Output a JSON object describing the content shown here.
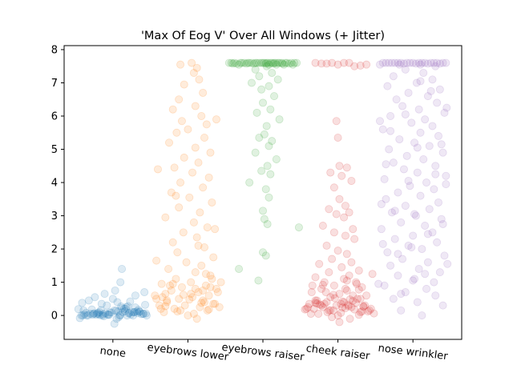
{
  "chart_data": {
    "type": "scatter",
    "title": "'Max Of Eog V' Over All Windows (+ Jitter)",
    "xlabel": "",
    "ylabel": "",
    "categories": [
      "none",
      "eyebrows lower",
      "eyebrows raiser",
      "cheek raiser",
      "nose wrinkler"
    ],
    "ylim": [
      -0.72,
      8.12
    ],
    "yticks": [
      0,
      1,
      2,
      3,
      4,
      5,
      6,
      7,
      8
    ],
    "x_tick_rotation_deg": -7,
    "grid": false,
    "marker_alpha": 0.15,
    "colors": [
      "#1f77b4",
      "#ff7f0e",
      "#2ca02c",
      "#d62728",
      "#9467bd"
    ],
    "series": [
      {
        "values": [
          0.0,
          0.05,
          0.1,
          0.02,
          -0.05,
          0.08,
          0.12,
          0.0,
          0.03,
          0.06,
          -0.02,
          0.15,
          0.2,
          0.1,
          0.05,
          0.0,
          0.08,
          0.3,
          0.4,
          0.25,
          0.12,
          0.06,
          -0.08,
          0.18,
          0.35,
          0.5,
          0.22,
          0.1,
          0.04,
          0.0,
          0.02,
          0.07,
          0.14,
          0.28,
          0.6,
          0.7,
          0.45,
          0.16,
          0.09,
          0.01,
          0.03,
          0.11,
          0.19,
          0.05,
          0.0,
          -0.1,
          0.13,
          0.24,
          0.32,
          0.08,
          0.04,
          0.02,
          0.0,
          0.06,
          0.17,
          0.38,
          0.55,
          0.65,
          0.75,
          0.2,
          0.1,
          0.05,
          0.0,
          0.01,
          0.09,
          0.27,
          0.42,
          1.0,
          1.4,
          -0.25,
          0.02,
          0.04,
          0.12,
          0.0,
          0.07,
          0.15,
          0.05,
          0.03,
          0.1,
          0.0
        ],
        "jitter": [
          -0.42,
          -0.3,
          -0.18,
          -0.05,
          0.08,
          0.22,
          0.35,
          0.45,
          -0.38,
          -0.25,
          -0.12,
          0.02,
          0.15,
          0.28,
          0.4,
          -0.35,
          -0.2,
          -0.08,
          0.06,
          0.18,
          0.32,
          0.44,
          -0.44,
          -0.28,
          -0.15,
          0.0,
          0.12,
          0.26,
          0.38,
          -0.4,
          -0.22,
          -0.1,
          0.04,
          0.2,
          0.3,
          0.42,
          -0.32,
          -0.16,
          -0.02,
          0.1,
          0.24,
          0.36,
          -0.46,
          -0.26,
          -0.14,
          0.05,
          0.16,
          0.3,
          0.43,
          -0.36,
          -0.19,
          -0.06,
          0.09,
          0.21,
          0.34,
          -0.41,
          -0.24,
          -0.11,
          0.03,
          0.17,
          0.29,
          0.41,
          -0.33,
          -0.17,
          -0.04,
          0.11,
          0.23,
          0.1,
          0.12,
          0.02,
          -0.27,
          -0.13,
          0.07,
          0.19,
          0.33,
          -0.39,
          -0.21,
          -0.07,
          0.13,
          0.27
        ]
      },
      {
        "values": [
          7.55,
          7.6,
          7.45,
          7.3,
          7.1,
          6.95,
          6.7,
          6.5,
          6.3,
          6.2,
          6.0,
          5.85,
          5.75,
          5.6,
          5.5,
          5.35,
          5.2,
          5.05,
          4.9,
          4.75,
          4.6,
          4.45,
          4.3,
          4.15,
          4.0,
          3.85,
          3.7,
          3.55,
          3.4,
          3.25,
          3.1,
          2.95,
          2.8,
          2.65,
          2.5,
          2.35,
          2.2,
          2.05,
          1.9,
          1.75,
          1.6,
          1.5,
          1.4,
          1.3,
          1.2,
          1.1,
          1.0,
          0.95,
          0.9,
          0.85,
          0.8,
          0.75,
          0.7,
          0.65,
          0.6,
          0.55,
          0.5,
          0.45,
          0.4,
          0.35,
          0.3,
          0.25,
          0.2,
          0.15,
          0.1,
          0.05,
          0.0,
          -0.1,
          0.3,
          0.5,
          0.7,
          0.9,
          1.1,
          0.2,
          0.4,
          0.6,
          0.8,
          1.0,
          0.15,
          0.35,
          0.55,
          0.75,
          0.95,
          0.25,
          0.45,
          0.65,
          0.85,
          5.9,
          4.4,
          3.6,
          2.6,
          2.1,
          1.65,
          1.25,
          0.62,
          0.48,
          0.38,
          0.28,
          0.18,
          0.12
        ],
        "jitter": [
          -0.1,
          0.05,
          0.12,
          0.08,
          0.15,
          -0.05,
          0.2,
          -0.12,
          0.1,
          -0.2,
          0.18,
          -0.08,
          0.25,
          0.0,
          -0.15,
          0.22,
          -0.25,
          0.1,
          0.3,
          -0.05,
          0.14,
          -0.18,
          0.06,
          0.28,
          -0.1,
          0.2,
          -0.22,
          0.02,
          0.32,
          -0.12,
          0.16,
          -0.3,
          0.08,
          0.26,
          -0.06,
          0.12,
          -0.2,
          0.22,
          -0.14,
          0.34,
          -0.02,
          0.18,
          -0.26,
          0.1,
          0.3,
          -0.16,
          0.04,
          -0.35,
          0.24,
          -0.08,
          0.38,
          -0.22,
          0.14,
          -0.3,
          0.28,
          0.06,
          -0.12,
          0.2,
          -0.28,
          0.36,
          -0.04,
          0.16,
          -0.18,
          0.26,
          -0.32,
          0.08,
          0.0,
          0.12,
          -0.38,
          -0.42,
          0.4,
          -0.24,
          0.32,
          -0.36,
          0.22,
          -0.44,
          0.1,
          0.44,
          -0.1,
          0.34,
          -0.34,
          0.2,
          -0.2,
          0.42,
          -0.28,
          0.04,
          0.3,
          0.38,
          -0.4,
          -0.16,
          0.36,
          0.14,
          -0.42,
          0.24,
          -0.06,
          0.02,
          0.18,
          -0.3,
          0.28,
          -0.14
        ]
      },
      {
        "values": [
          7.6,
          7.6,
          7.6,
          7.6,
          7.6,
          7.6,
          7.6,
          7.6,
          7.6,
          7.6,
          7.6,
          7.6,
          7.6,
          7.6,
          7.6,
          7.6,
          7.6,
          7.6,
          7.6,
          7.6,
          7.58,
          7.58,
          7.58,
          7.58,
          7.58,
          7.58,
          7.58,
          7.58,
          7.55,
          7.55,
          7.55,
          7.55,
          7.55,
          7.5,
          7.4,
          7.3,
          7.2,
          7.1,
          7.0,
          6.9,
          6.8,
          6.6,
          6.4,
          6.2,
          6.1,
          5.9,
          5.7,
          5.45,
          5.35,
          5.25,
          5.1,
          4.9,
          4.7,
          4.5,
          4.35,
          4.25,
          4.0,
          3.8,
          3.55,
          3.15,
          2.9,
          2.75,
          2.65,
          1.9,
          1.8,
          1.4,
          1.05,
          7.6,
          7.6,
          7.6,
          7.6,
          7.6,
          7.6,
          7.6,
          7.6,
          7.6
        ],
        "jitter": [
          -0.3,
          -0.25,
          -0.2,
          -0.15,
          -0.1,
          -0.05,
          0.0,
          0.05,
          0.1,
          0.15,
          0.2,
          0.25,
          0.3,
          -0.28,
          -0.18,
          -0.08,
          0.02,
          0.12,
          0.22,
          0.32,
          -0.35,
          -0.22,
          -0.12,
          0.04,
          0.14,
          0.26,
          0.35,
          -0.4,
          0.4,
          -0.32,
          0.08,
          0.18,
          0.28,
          0.05,
          -0.1,
          0.12,
          -0.05,
          0.2,
          -0.15,
          0.08,
          -0.02,
          0.15,
          0.0,
          0.1,
          -0.08,
          0.22,
          0.05,
          0.02,
          -0.05,
          0.12,
          0.08,
          -0.1,
          0.18,
          0.06,
          -0.02,
          0.1,
          -0.18,
          0.04,
          0.08,
          0.0,
          0.02,
          0.06,
          0.48,
          0.0,
          0.04,
          -0.32,
          -0.06,
          -0.42,
          0.42,
          -0.38,
          0.38,
          -0.45,
          0.45,
          -0.02,
          0.07,
          0.17
        ]
      },
      {
        "values": [
          7.6,
          7.58,
          7.55,
          7.6,
          7.52,
          7.58,
          7.6,
          7.5,
          7.6,
          7.55,
          5.85,
          5.35,
          4.5,
          4.45,
          4.3,
          4.2,
          4.05,
          3.85,
          3.5,
          3.3,
          3.2,
          3.1,
          3.05,
          2.95,
          2.7,
          2.6,
          2.5,
          2.4,
          2.3,
          2.1,
          1.95,
          1.85,
          1.7,
          1.6,
          1.55,
          1.45,
          1.35,
          1.3,
          1.2,
          1.15,
          1.1,
          1.0,
          0.95,
          0.9,
          0.85,
          0.8,
          0.75,
          0.7,
          0.65,
          0.6,
          0.55,
          0.5,
          0.45,
          0.42,
          0.4,
          0.38,
          0.35,
          0.32,
          0.3,
          0.28,
          0.25,
          0.22,
          0.2,
          0.18,
          0.15,
          0.12,
          0.1,
          0.08,
          0.05,
          0.02,
          0.0,
          -0.05,
          -0.1,
          -0.2,
          0.25,
          0.3,
          0.35,
          0.4,
          0.45,
          0.5,
          0.15,
          0.2,
          0.25,
          0.3,
          0.35,
          0.05,
          0.1,
          0.15,
          0.2,
          0.28,
          0.36,
          0.44,
          0.52,
          0.6,
          0.7,
          0.8,
          0.9,
          1.0,
          0.12,
          0.18,
          0.24,
          0.33,
          0.48,
          0.62,
          0.78,
          0.92,
          1.05,
          1.25,
          0.16,
          0.26,
          0.38,
          0.06
        ],
        "jitter": [
          -0.3,
          -0.15,
          0.0,
          0.15,
          0.3,
          -0.22,
          0.08,
          0.22,
          -0.08,
          0.38,
          -0.02,
          0.0,
          0.02,
          0.12,
          -0.1,
          0.05,
          0.18,
          -0.05,
          0.02,
          0.1,
          -0.12,
          0.15,
          -0.02,
          0.08,
          -0.2,
          0.2,
          -0.05,
          0.1,
          0.22,
          -0.15,
          0.0,
          0.12,
          -0.08,
          0.18,
          -0.25,
          0.05,
          0.28,
          -0.12,
          0.15,
          -0.3,
          0.08,
          -0.18,
          0.25,
          -0.05,
          0.32,
          -0.22,
          0.12,
          -0.35,
          0.02,
          0.2,
          -0.1,
          0.3,
          -0.28,
          0.06,
          -0.15,
          0.24,
          -0.38,
          0.14,
          -0.02,
          0.34,
          -0.2,
          0.1,
          -0.32,
          0.22,
          -0.06,
          0.4,
          -0.14,
          0.04,
          -0.26,
          0.28,
          0.0,
          -0.08,
          0.16,
          0.02,
          -0.4,
          0.36,
          -0.18,
          0.08,
          -0.3,
          0.26,
          0.42,
          -0.42,
          0.18,
          -0.22,
          0.04,
          -0.36,
          0.3,
          -0.12,
          0.44,
          0.14,
          -0.28,
          0.2,
          -0.04,
          0.38,
          -0.16,
          0.1,
          -0.34,
          0.24,
          0.32,
          -0.44,
          0.06,
          -0.24,
          0.16,
          -0.06,
          0.28,
          -0.2,
          0.12,
          0.46,
          -0.1,
          0.34,
          -0.3,
          0.48
        ],
        "marker_alpha_override": null
      },
      {
        "values": [
          7.6,
          7.6,
          7.6,
          7.6,
          7.6,
          7.6,
          7.6,
          7.6,
          7.6,
          7.6,
          7.6,
          7.6,
          7.6,
          7.6,
          7.6,
          7.6,
          7.6,
          7.6,
          7.58,
          7.58,
          7.58,
          7.58,
          7.55,
          7.55,
          7.55,
          7.5,
          7.4,
          7.3,
          7.2,
          7.1,
          7.0,
          6.9,
          6.8,
          6.7,
          6.6,
          6.5,
          6.4,
          6.3,
          6.2,
          6.1,
          6.0,
          5.9,
          5.8,
          5.7,
          5.6,
          5.5,
          5.4,
          5.3,
          5.2,
          5.1,
          5.0,
          4.9,
          4.8,
          4.7,
          4.6,
          4.5,
          4.4,
          4.3,
          4.2,
          4.1,
          4.0,
          3.9,
          3.8,
          3.7,
          3.6,
          3.5,
          3.4,
          3.3,
          3.2,
          3.1,
          3.0,
          2.9,
          2.8,
          2.7,
          2.6,
          2.5,
          2.4,
          2.3,
          2.2,
          2.1,
          2.0,
          1.9,
          1.8,
          1.7,
          1.6,
          1.5,
          1.4,
          1.3,
          1.2,
          1.1,
          1.0,
          0.9,
          0.8,
          0.7,
          0.6,
          0.5,
          0.4,
          0.3,
          0.15,
          0.0,
          6.25,
          5.85,
          5.15,
          4.55,
          3.95,
          3.35,
          2.75,
          2.15,
          1.55,
          0.95,
          6.75,
          5.55,
          4.25,
          3.15,
          2.45,
          1.85,
          1.25,
          0.65,
          7.05,
          6.05,
          5.05,
          4.05,
          3.05,
          2.05,
          1.05
        ],
        "jitter": [
          -0.4,
          -0.32,
          -0.24,
          -0.16,
          -0.08,
          0.0,
          0.08,
          0.16,
          0.24,
          0.32,
          0.4,
          -0.36,
          -0.2,
          -0.04,
          0.12,
          0.28,
          0.44,
          -0.28,
          -0.12,
          0.04,
          0.2,
          0.36,
          -0.44,
          -0.18,
          0.1,
          0.3,
          -0.1,
          0.14,
          -0.26,
          0.26,
          0.05,
          -0.34,
          0.36,
          -0.06,
          0.2,
          -0.22,
          0.32,
          -0.14,
          0.08,
          0.42,
          -0.3,
          0.16,
          -0.02,
          0.26,
          -0.4,
          0.1,
          0.34,
          -0.18,
          0.02,
          0.22,
          -0.32,
          0.4,
          -0.08,
          0.14,
          -0.26,
          0.3,
          -0.12,
          0.06,
          0.44,
          -0.38,
          0.18,
          -0.04,
          0.28,
          -0.2,
          0.1,
          -0.36,
          0.34,
          -0.1,
          0.22,
          -0.28,
          0.04,
          0.38,
          -0.16,
          0.16,
          -0.42,
          0.26,
          0.0,
          -0.24,
          0.32,
          -0.06,
          0.12,
          -0.34,
          0.42,
          -0.14,
          0.2,
          -0.3,
          0.08,
          0.36,
          -0.2,
          0.02,
          0.28,
          -0.38,
          0.18,
          -0.1,
          0.3,
          -0.26,
          0.06,
          0.4,
          -0.16,
          0.12,
          0.45,
          -0.44,
          0.38,
          -0.36,
          0.44,
          -0.42,
          0.4,
          -0.4,
          0.46,
          -0.46,
          0.24,
          -0.3,
          0.3,
          -0.24,
          0.2,
          -0.2,
          0.16,
          -0.16,
          0.1,
          -0.1,
          0.06,
          -0.06,
          0.02,
          -0.02,
          0.0
        ]
      }
    ]
  }
}
